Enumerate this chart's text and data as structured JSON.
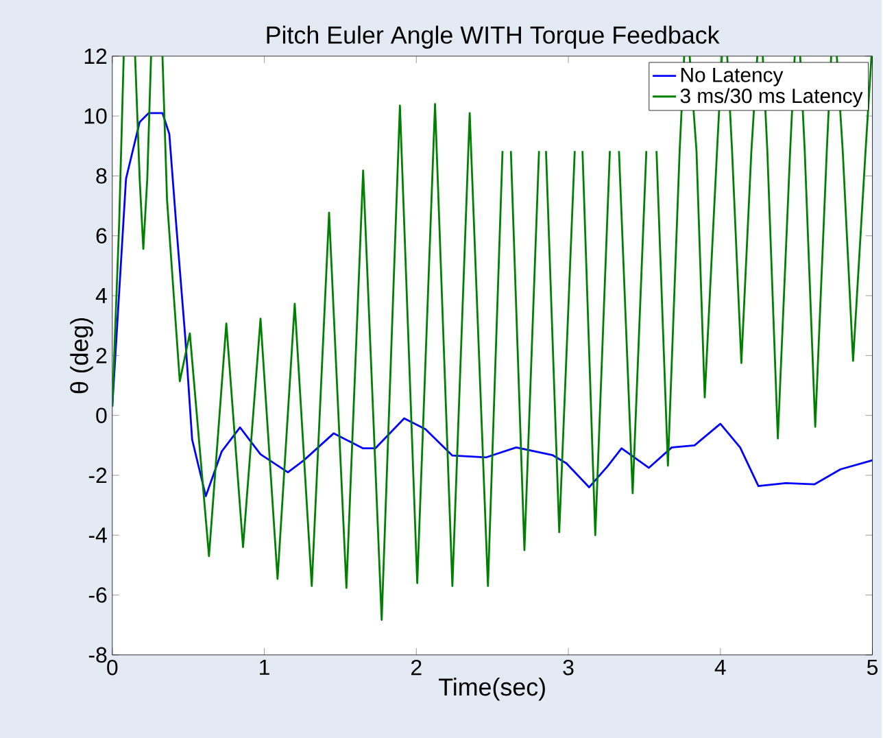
{
  "chart_data": {
    "type": "line",
    "title": "Pitch Euler Angle WITH Torque Feedback",
    "xlabel": "Time(sec)",
    "ylabel": "θ (deg)",
    "xlim": [
      0,
      5
    ],
    "ylim": [
      -8,
      12
    ],
    "xticks": [
      0,
      1,
      2,
      3,
      4,
      5
    ],
    "yticks": [
      -8,
      -6,
      -4,
      -2,
      0,
      2,
      4,
      6,
      8,
      10,
      12
    ],
    "grid": false,
    "legend": "top right",
    "marker": "none",
    "line_style": "solid",
    "series": [
      {
        "name": "No Latency",
        "color": "#0000ff",
        "x": [
          0,
          0.09,
          0.18,
          0.24,
          0.33,
          0.375,
          0.42,
          0.48,
          0.525,
          0.615,
          0.72,
          0.84,
          0.975,
          1.155,
          1.26,
          1.456,
          1.65,
          1.73,
          1.92,
          2.06,
          2.237,
          2.46,
          2.657,
          2.897,
          2.987,
          3.137,
          3.258,
          3.35,
          3.53,
          3.68,
          3.83,
          4.0,
          4.13,
          4.25,
          4.43,
          4.62,
          4.79,
          5.0
        ],
        "values": [
          0.3,
          7.9,
          9.8,
          10.1,
          10.1,
          9.4,
          6.4,
          2.6,
          -0.8,
          -2.7,
          -1.2,
          -0.4,
          -1.3,
          -1.9,
          -1.5,
          -0.6,
          -1.1,
          -1.1,
          -0.1,
          -0.46,
          -1.34,
          -1.4,
          -1.07,
          -1.33,
          -1.6,
          -2.4,
          -1.7,
          -1.1,
          -1.75,
          -1.07,
          -1.0,
          -0.28,
          -1.07,
          -2.36,
          -2.26,
          -2.3,
          -1.8,
          -1.5
        ]
      },
      {
        "name": "3 ms/30 ms Latency",
        "color": "#008000",
        "x": [
          0,
          0.045,
          0.075,
          0.11,
          0.15,
          0.18,
          0.204,
          0.23,
          0.255,
          0.29,
          0.33,
          0.36,
          0.444,
          0.51,
          0.636,
          0.75,
          0.86,
          0.975,
          1.087,
          1.2,
          1.312,
          1.426,
          1.54,
          1.65,
          1.772,
          1.892,
          2.006,
          2.123,
          2.237,
          2.351,
          2.471,
          2.567,
          2.595,
          2.622,
          2.711,
          2.807,
          2.83,
          2.853,
          2.94,
          3.042,
          3.07,
          3.093,
          3.177,
          3.273,
          3.3,
          3.333,
          3.423,
          3.513,
          3.55,
          3.58,
          3.655,
          3.732,
          3.762,
          3.78,
          3.798,
          3.843,
          3.897,
          3.978,
          4.01,
          4.03,
          4.045,
          4.077,
          4.138,
          4.204,
          4.243,
          4.26,
          4.279,
          4.309,
          4.378,
          4.459,
          4.489,
          4.51,
          4.525,
          4.555,
          4.624,
          4.7,
          4.729,
          4.75,
          4.766,
          4.805,
          4.873,
          4.955,
          4.994
        ],
        "values": [
          0.3,
          6.4,
          12,
          null,
          12,
          7.9,
          5.56,
          7.9,
          12,
          null,
          12,
          7.2,
          1.14,
          2.74,
          -4.7,
          3.07,
          -4.4,
          3.23,
          -5.46,
          3.73,
          -5.7,
          6.77,
          -5.76,
          8.18,
          -6.83,
          10.35,
          -5.6,
          10.4,
          -5.7,
          10.1,
          -5.7,
          8.83,
          null,
          8.83,
          -4.5,
          8.83,
          null,
          8.83,
          -3.9,
          8.83,
          null,
          8.83,
          -4.0,
          8.83,
          null,
          8.83,
          -2.6,
          8.83,
          null,
          8.83,
          -1.68,
          8.83,
          12,
          null,
          12,
          8.83,
          0.6,
          8.83,
          12,
          null,
          12,
          8.83,
          1.75,
          8.83,
          12,
          null,
          12,
          8.83,
          -0.77,
          8.83,
          12,
          null,
          12,
          8.83,
          -0.38,
          8.83,
          12,
          null,
          12,
          8.83,
          1.82,
          8.83,
          12
        ]
      }
    ]
  }
}
